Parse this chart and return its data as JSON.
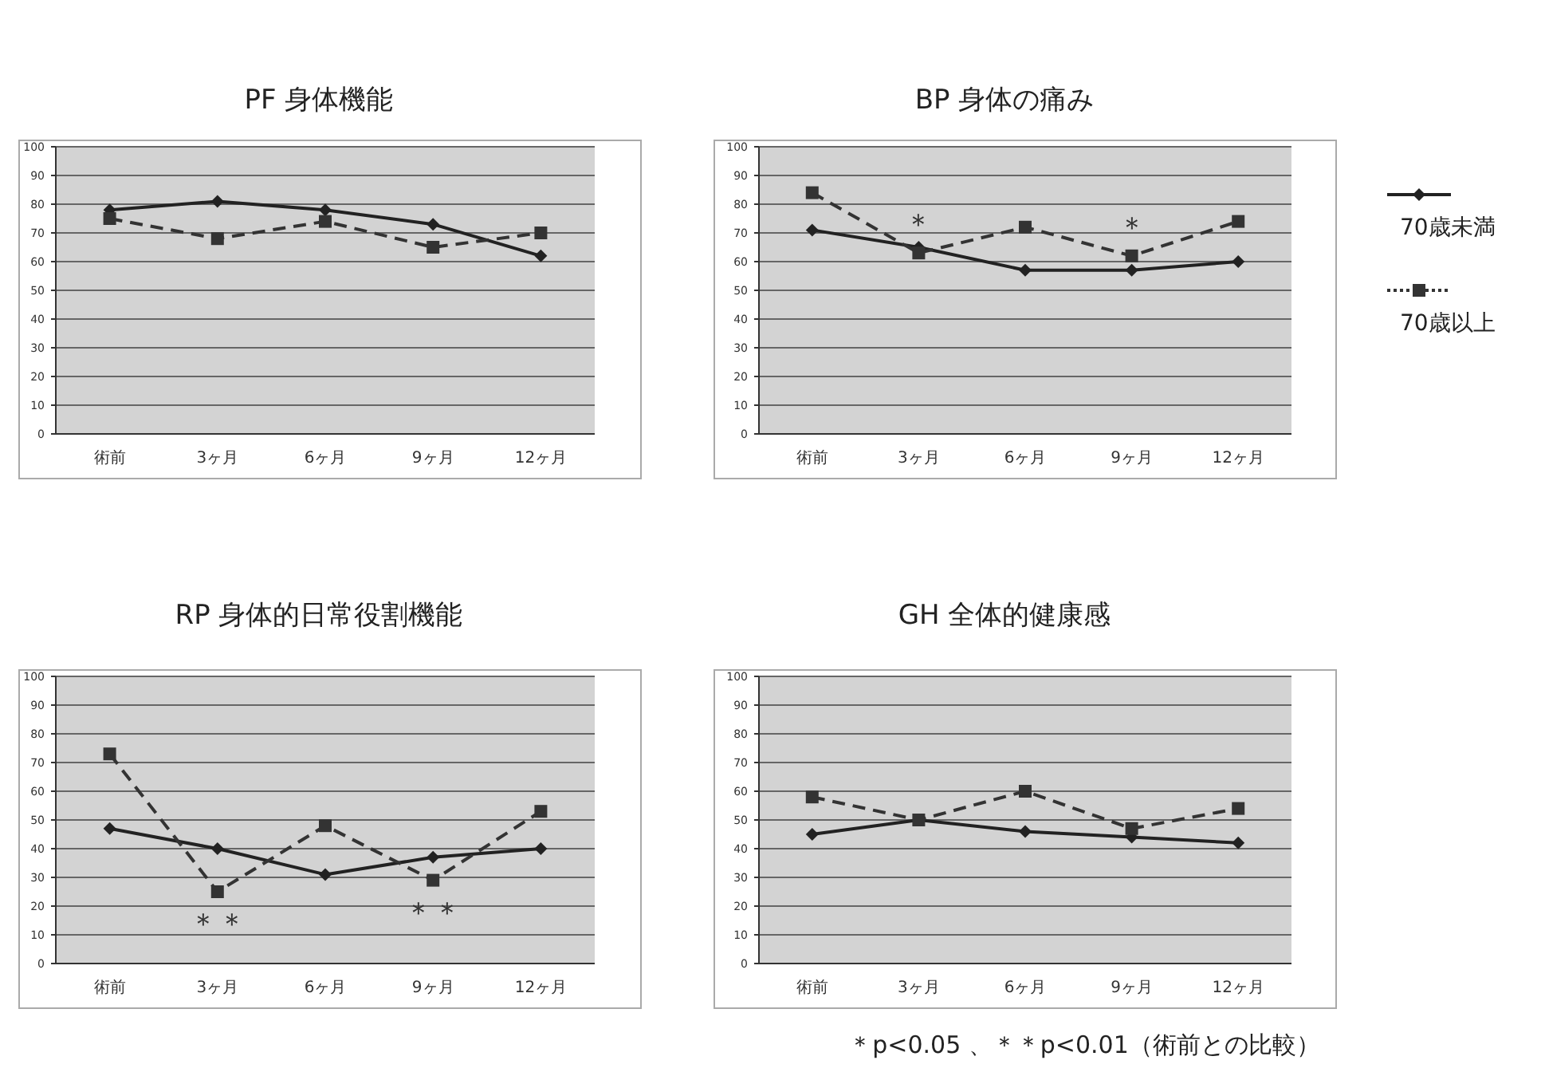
{
  "chart_data": [
    {
      "type": "line",
      "title": "PF 身体機能",
      "categories": [
        "術前",
        "3ヶ月",
        "6ヶ月",
        "9ヶ月",
        "12ヶ月"
      ],
      "ylim": [
        0,
        100
      ],
      "yticks": [
        0,
        10,
        20,
        30,
        40,
        50,
        60,
        70,
        80,
        90,
        100
      ],
      "grid": "y",
      "legend": false,
      "series": [
        {
          "color": "#222222",
          "marker": "diamond",
          "line_style": "solid",
          "values": [
            78,
            81,
            78,
            73,
            62
          ]
        },
        {
          "color": "#333333",
          "marker": "square",
          "line_style": "dashed",
          "values": [
            75,
            68,
            74,
            65,
            70
          ]
        }
      ]
    },
    {
      "type": "line",
      "title": "BP 身体の痛み",
      "categories": [
        "術前",
        "3ヶ月",
        "6ヶ月",
        "9ヶ月",
        "12ヶ月"
      ],
      "ylim": [
        0,
        100
      ],
      "yticks": [
        0,
        10,
        20,
        30,
        40,
        50,
        60,
        70,
        80,
        90,
        100
      ],
      "grid": "y",
      "legend": "right",
      "series": [
        {
          "name": "70歳未満",
          "color": "#222222",
          "marker": "diamond",
          "line_style": "solid",
          "values": [
            71,
            65,
            57,
            57,
            60
          ]
        },
        {
          "name": "70歳以上",
          "color": "#333333",
          "marker": "square",
          "line_style": "dashed",
          "values": [
            84,
            63,
            72,
            62,
            74
          ]
        }
      ],
      "annotations": [
        {
          "text": "＊",
          "x": "3ヶ月",
          "y": 63
        },
        {
          "text": "＊",
          "x": "9ヶ月",
          "y": 62
        }
      ]
    },
    {
      "type": "line",
      "title": "RP 身体的日常役割機能",
      "categories": [
        "術前",
        "3ヶ月",
        "6ヶ月",
        "9ヶ月",
        "12ヶ月"
      ],
      "ylim": [
        0,
        100
      ],
      "yticks": [
        0,
        10,
        20,
        30,
        40,
        50,
        60,
        70,
        80,
        90,
        100
      ],
      "grid": "y",
      "legend": false,
      "series": [
        {
          "color": "#222222",
          "marker": "diamond",
          "line_style": "solid",
          "values": [
            47,
            40,
            31,
            37,
            40
          ]
        },
        {
          "color": "#333333",
          "marker": "square",
          "line_style": "dashed",
          "values": [
            73,
            25,
            48,
            29,
            53
          ]
        }
      ],
      "annotations": [
        {
          "text": "＊＊",
          "x": "3ヶ月",
          "y": 25
        },
        {
          "text": "＊＊",
          "x": "9ヶ月",
          "y": 29
        }
      ]
    },
    {
      "type": "line",
      "title": "GH 全体的健康感",
      "categories": [
        "術前",
        "3ヶ月",
        "6ヶ月",
        "9ヶ月",
        "12ヶ月"
      ],
      "ylim": [
        0,
        100
      ],
      "yticks": [
        0,
        10,
        20,
        30,
        40,
        50,
        60,
        70,
        80,
        90,
        100
      ],
      "grid": "y",
      "legend": false,
      "series": [
        {
          "color": "#222222",
          "marker": "diamond",
          "line_style": "solid",
          "values": [
            45,
            50,
            46,
            44,
            42
          ]
        },
        {
          "color": "#333333",
          "marker": "square",
          "line_style": "dashed",
          "values": [
            58,
            50,
            60,
            47,
            54
          ]
        }
      ],
      "annotations": [
        "＊p<0.05 、＊＊p<0.01（術前との比較）"
      ]
    }
  ]
}
